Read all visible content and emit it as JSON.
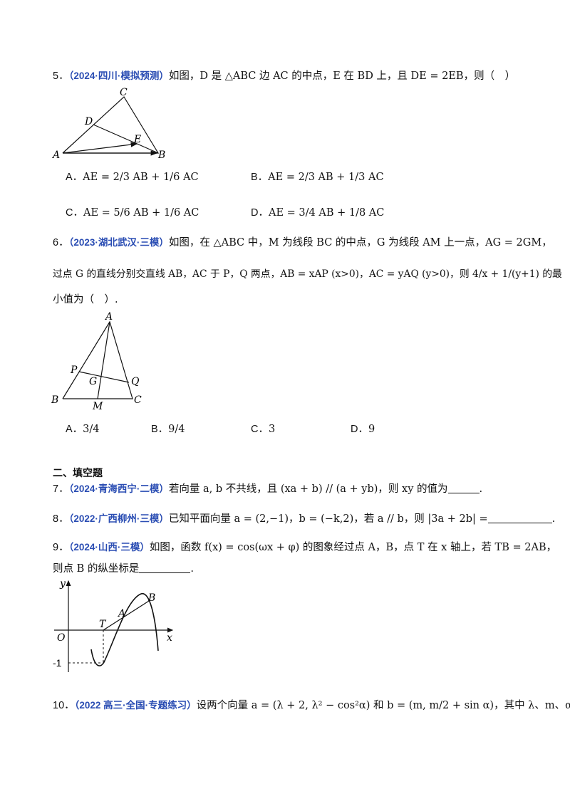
{
  "q5": {
    "num": "5．",
    "src": "（2024·四川·模拟预测）",
    "text": "如图，D 是 △ABC 边 AC 的中点，E 在 BD 上，且 DE = 2EB，则（　）",
    "opts": [
      {
        "label": "A．",
        "expr": "AE = 2/3 AB + 1/6 AC"
      },
      {
        "label": "B．",
        "expr": "AE = 2/3 AB + 1/3 AC"
      },
      {
        "label": "C．",
        "expr": "AE = 5/6 AB + 1/6 AC"
      },
      {
        "label": "D．",
        "expr": "AE = 3/4 AB + 1/8 AC"
      }
    ],
    "fig": {
      "A": "A",
      "B": "B",
      "C": "C",
      "D": "D",
      "E": "E"
    }
  },
  "q6": {
    "num": "6．",
    "src": "（2023·湖北武汉·三模）",
    "text1": "如图，在 △ABC 中，M 为线段 BC 的中点，G 为线段 AM 上一点，AG = 2GM，",
    "text2": "过点 G 的直线分别交直线 AB，AC 于 P，Q 两点，AB = xAP (x>0)，AC = yAQ (y>0)，则 4/x + 1/(y+1) 的最",
    "text3": "小值为（　）.",
    "opts": [
      {
        "label": "A．",
        "expr": "3/4"
      },
      {
        "label": "B．",
        "expr": "9/4"
      },
      {
        "label": "C．",
        "expr": "3"
      },
      {
        "label": "D．",
        "expr": "9"
      }
    ],
    "fig": {
      "A": "A",
      "B": "B",
      "C": "C",
      "P": "P",
      "Q": "Q",
      "G": "G",
      "M": "M"
    }
  },
  "section2": "二、填空题",
  "q7": {
    "num": "7．",
    "src": "（2024·青海西宁·二模）",
    "text": "若向量 a, b 不共线，且 (xa + b) // (a + yb)，则 xy 的值为",
    "end": "."
  },
  "q8": {
    "num": "8．",
    "src": "（2022·广西柳州·三模）",
    "text": "已知平面向量 a = (2,−1)，b = (−k,2)，若 a // b，则 |3a + 2b| =",
    "end": "."
  },
  "q9": {
    "num": "9．",
    "src": "（2024·山西·三模）",
    "text1": "如图，函数 f(x) = cos(ωx + φ) 的图象经过点 A，B，点 T 在 x 轴上，若 TB = 2AB，",
    "text2": "则点 B 的纵坐标是",
    "end": ".",
    "fig": {
      "y": "y",
      "x": "x",
      "O": "O",
      "T": "T",
      "A": "A",
      "B": "B",
      "m1": "-1"
    }
  },
  "q10": {
    "num": "10．",
    "src": "（2022 高三·全国·专题练习）",
    "text": "设两个向量 a = (λ + 2, λ² − cos²α) 和 b = (m, m/2 + sin α)，其中 λ、m、α"
  }
}
